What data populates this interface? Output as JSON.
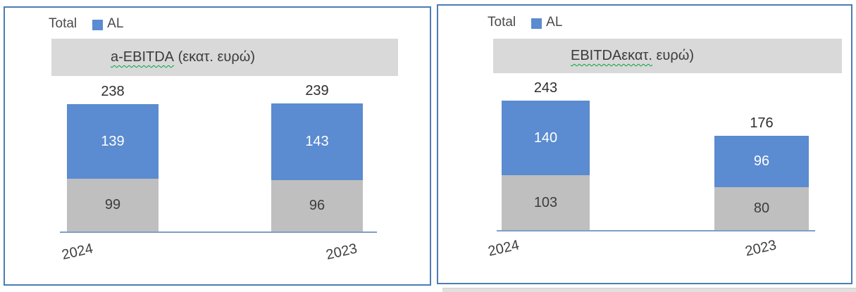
{
  "colors": {
    "al_blue": "#5b8bd0",
    "base_gray": "#bfbfbf",
    "title_band_gray": "#d9d9d9",
    "panel_border_blue": "#4d7cb5",
    "axis_line_blue": "#7f9fc4",
    "spellcheck_squiggle_green": "#00a33e"
  },
  "chart_data": [
    {
      "type": "bar",
      "stacked": true,
      "title": "a-EBITDA (εκατ. ευρώ)",
      "title_marked": "a-EBITDA",
      "title_rest": " (εκατ. ευρώ)",
      "legend": [
        "Total",
        "AL"
      ],
      "legend_position": "top-left",
      "categories": [
        "2024",
        "2023"
      ],
      "series": [
        {
          "name": "base-gray-segment",
          "values": [
            99,
            96
          ]
        },
        {
          "name": "AL",
          "values": [
            139,
            143
          ]
        }
      ],
      "totals": [
        238,
        239
      ],
      "value_labels": true,
      "grid": false,
      "ylim": [
        0,
        260
      ]
    },
    {
      "type": "bar",
      "stacked": true,
      "title": "EBITDAεκατ. ευρώ)",
      "title_marked": "EBITDAεκατ.",
      "title_rest": " ευρώ)",
      "legend": [
        "Total",
        "AL"
      ],
      "legend_position": "top-left",
      "categories": [
        "2024",
        "2023"
      ],
      "series": [
        {
          "name": "base-gray-segment",
          "values": [
            103,
            80
          ]
        },
        {
          "name": "AL",
          "values": [
            140,
            96
          ]
        }
      ],
      "totals": [
        243,
        176
      ],
      "value_labels": true,
      "grid": false,
      "ylim": [
        0,
        260
      ]
    }
  ]
}
